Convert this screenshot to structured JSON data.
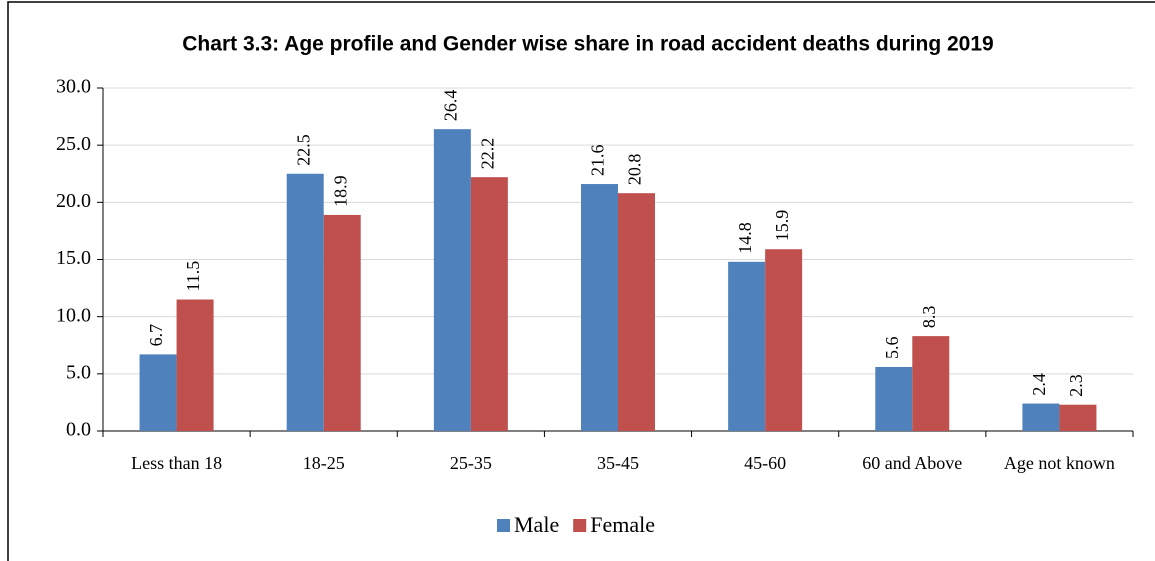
{
  "chart_data": {
    "type": "bar",
    "title": "Chart 3.3: Age profile and Gender wise share in road accident deaths during 2019",
    "categories": [
      "Less than 18",
      "18-25",
      "25-35",
      "35-45",
      "45-60",
      "60 and Above",
      "Age not known"
    ],
    "series": [
      {
        "name": "Male",
        "color": "#4f81bd",
        "values": [
          6.7,
          22.5,
          26.4,
          21.6,
          14.8,
          5.6,
          2.4
        ]
      },
      {
        "name": "Female",
        "color": "#c0504d",
        "values": [
          11.5,
          18.9,
          22.2,
          20.8,
          15.9,
          8.3,
          2.3
        ]
      }
    ],
    "ylim": [
      0,
      30
    ],
    "yticks": [
      {
        "value": 0,
        "label": "0.0"
      },
      {
        "value": 5,
        "label": "5.0"
      },
      {
        "value": 10,
        "label": "10.0"
      },
      {
        "value": 15,
        "label": "15.0"
      },
      {
        "value": 20,
        "label": "20.0"
      },
      {
        "value": 25,
        "label": "25.0"
      },
      {
        "value": 30,
        "label": "30.0"
      }
    ],
    "grid": true,
    "legend": "bottom"
  }
}
